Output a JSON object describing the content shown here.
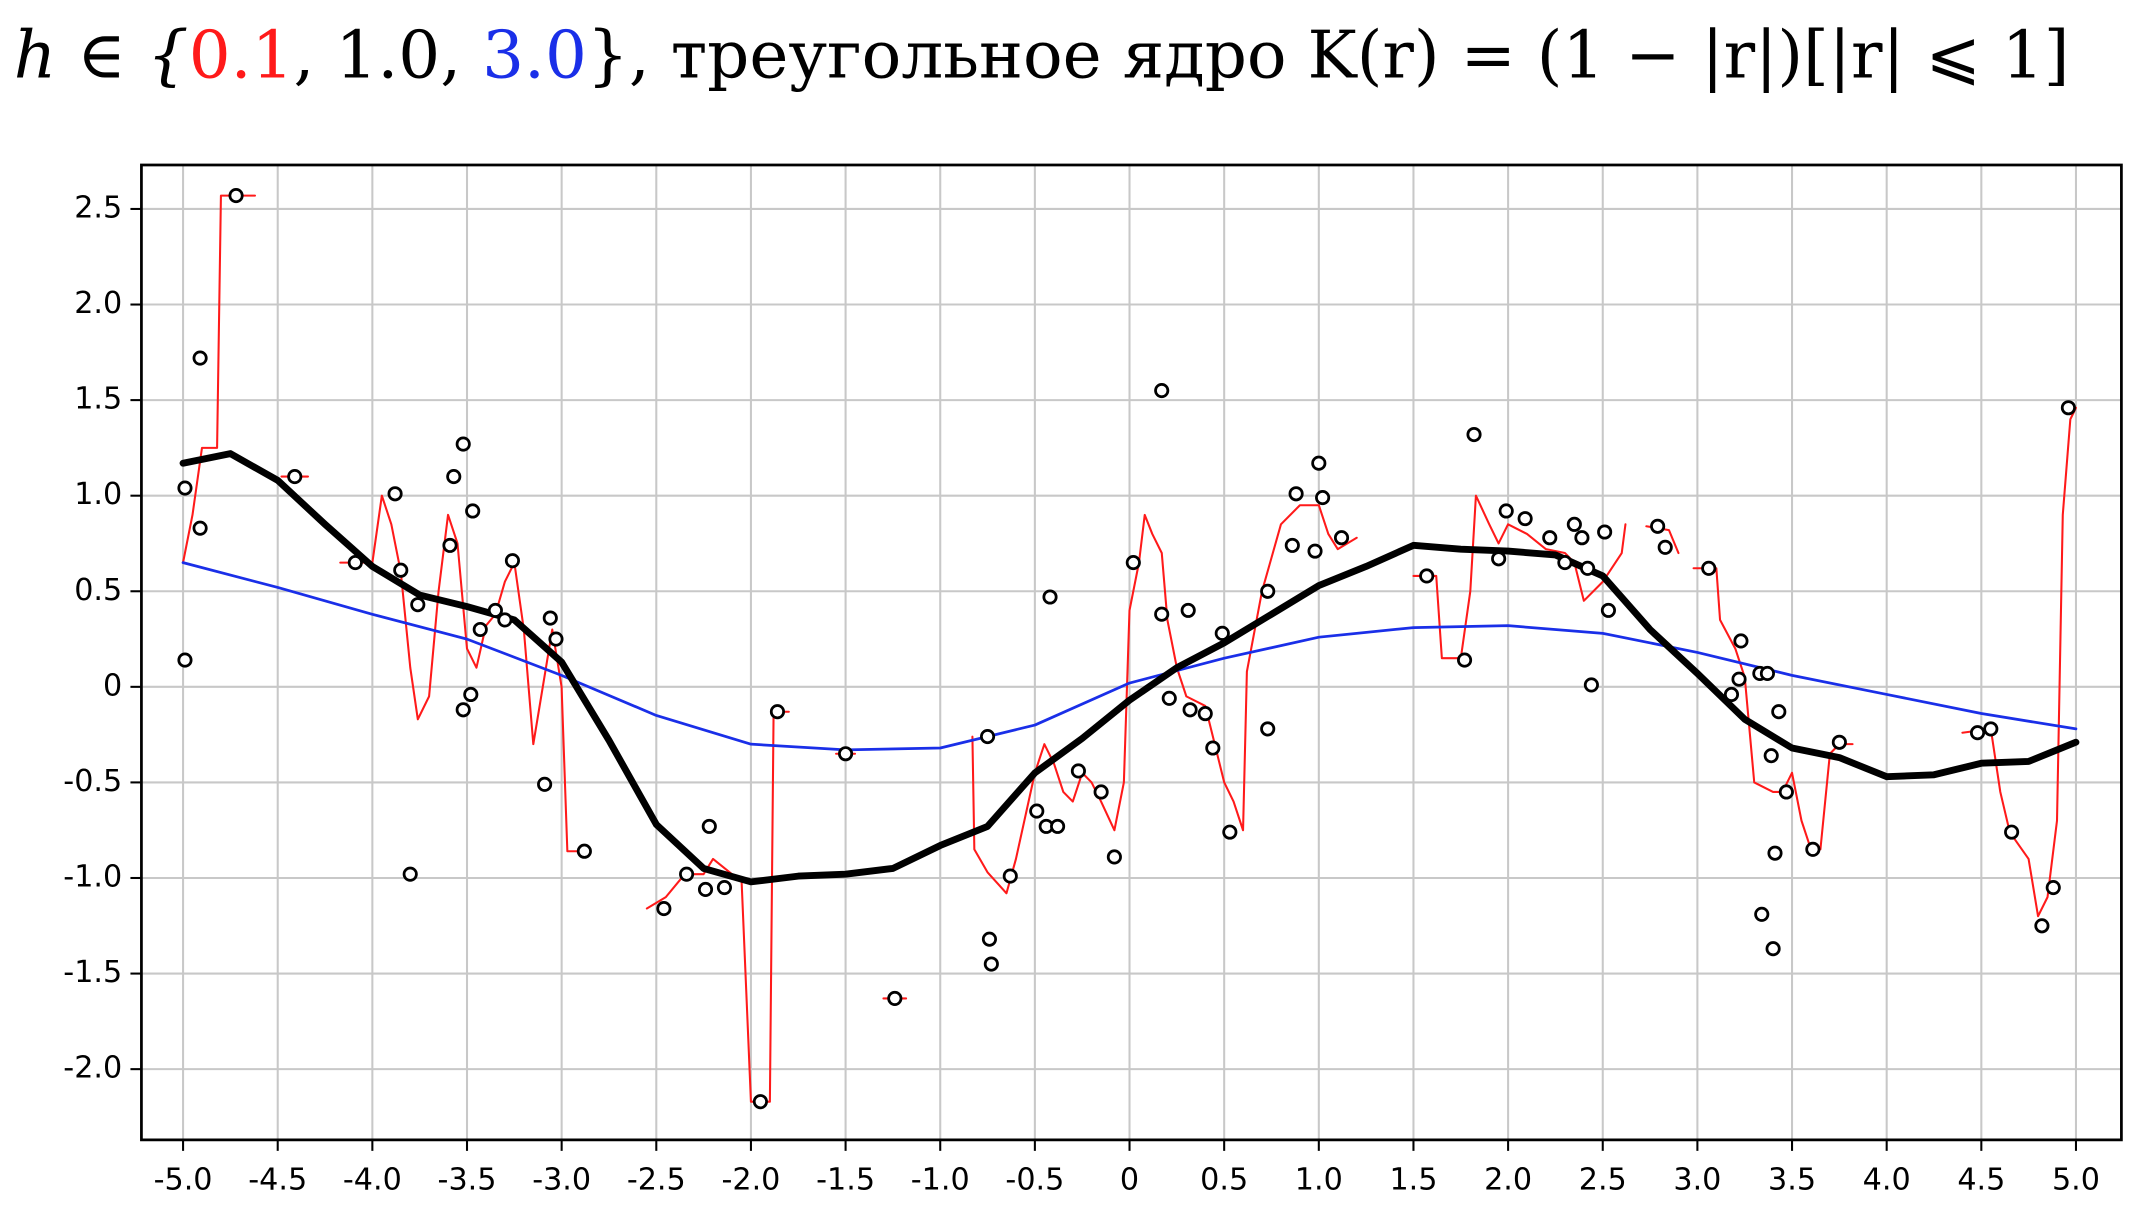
{
  "chart_data": {
    "type": "line",
    "title_prefix": "h ∈ {",
    "title_separator": ", ",
    "title_suffix": "},   треугольное ядро K(r) = (1 − |r|)[|r| ⩽ 1]",
    "xlim": [
      -5.22,
      5.24
    ],
    "ylim": [
      -2.37,
      2.73
    ],
    "grid": true,
    "xticks": [
      {
        "value": -5,
        "label": "-5.0"
      },
      -4.5,
      {
        "value": -4,
        "label": "-4.0"
      },
      -3.5,
      {
        "value": -3,
        "label": "-3.0"
      },
      -2.5,
      {
        "value": -2,
        "label": "-2.0"
      },
      -1.5,
      {
        "value": -1,
        "label": "-1.0"
      },
      -0.5,
      0,
      0.5,
      {
        "value": 1,
        "label": "1.0"
      },
      1.5,
      {
        "value": 2,
        "label": "2.0"
      },
      2.5,
      {
        "value": 3,
        "label": "3.0"
      },
      3.5,
      {
        "value": 4,
        "label": "4.0"
      },
      4.5,
      {
        "value": 5,
        "label": "5.0"
      }
    ],
    "yticks": [
      {
        "value": -2,
        "label": "-2.0"
      },
      -1.5,
      {
        "value": -1,
        "label": "-1.0"
      },
      -0.5,
      0,
      0.5,
      {
        "value": 1,
        "label": "1.0"
      },
      1.5,
      {
        "value": 2,
        "label": "2.0"
      },
      2.5
    ],
    "series": [
      {
        "name": "0.1",
        "type": "line",
        "color": "#ff1a1a",
        "width": 1.5,
        "x": [
          -5,
          -4.95,
          -4.9,
          -4.82,
          -4.8,
          -4.62,
          -4.55,
          -4.48,
          -4.34,
          -4.25,
          -4.17,
          -4.0,
          -3.95,
          -3.9,
          -3.85,
          -3.8,
          -3.76,
          -3.7,
          -3.65,
          -3.6,
          -3.55,
          -3.5,
          -3.45,
          -3.4,
          -3.35,
          -3.3,
          -3.25,
          -3.2,
          -3.15,
          -3.1,
          -3.05,
          -3.0,
          -2.97,
          -2.85,
          -2.7,
          -2.55,
          -2.45,
          -2.35,
          -2.25,
          -2.2,
          -2.1,
          -2.05,
          -2.0,
          -1.9,
          -1.88,
          -1.8,
          -1.68,
          -1.55,
          -1.45,
          -1.38,
          -1.3,
          -1.18,
          -1.0,
          -0.83,
          -0.82,
          -0.75,
          -0.65,
          -0.6,
          -0.5,
          -0.45,
          -0.4,
          -0.35,
          -0.3,
          -0.25,
          -0.2,
          -0.15,
          -0.08,
          -0.03,
          0.0,
          0.05,
          0.08,
          0.12,
          0.17,
          0.2,
          0.25,
          0.3,
          0.4,
          0.45,
          0.5,
          0.55,
          0.6,
          0.62,
          0.7,
          0.8,
          0.9,
          1.0,
          1.05,
          1.1,
          1.2,
          1.35,
          1.5,
          1.62,
          1.65,
          1.75,
          1.8,
          1.83,
          1.9,
          1.95,
          2.0,
          2.1,
          2.2,
          2.3,
          2.35,
          2.4,
          2.5,
          2.6,
          2.62,
          2.68,
          2.73,
          2.85,
          2.9,
          2.94,
          2.98,
          3.1,
          3.12,
          3.2,
          3.25,
          3.3,
          3.4,
          3.45,
          3.5,
          3.55,
          3.6,
          3.65,
          3.7,
          3.75,
          3.82,
          4.1,
          4.4,
          4.55,
          4.6,
          4.65,
          4.75,
          4.8,
          4.85,
          4.9,
          4.93,
          4.97,
          5.0
        ],
        "values": [
          0.65,
          0.9,
          1.25,
          1.25,
          2.57,
          2.57,
          null,
          1.1,
          1.1,
          null,
          0.65,
          0.65,
          1.0,
          0.85,
          0.6,
          0.1,
          -0.17,
          -0.05,
          0.5,
          0.9,
          0.75,
          0.2,
          0.1,
          0.32,
          0.38,
          0.55,
          0.65,
          0.3,
          -0.3,
          0.0,
          0.3,
          0.0,
          -0.86,
          -0.86,
          null,
          -1.16,
          -1.1,
          -0.98,
          -0.98,
          -0.9,
          -0.98,
          -1.0,
          -2.17,
          -2.17,
          -0.13,
          -0.13,
          null,
          -0.35,
          -0.35,
          null,
          -1.63,
          -1.63,
          null,
          -0.26,
          -0.85,
          -0.97,
          -1.08,
          -0.9,
          -0.45,
          -0.3,
          -0.4,
          -0.55,
          -0.6,
          -0.45,
          -0.5,
          -0.6,
          -0.75,
          -0.5,
          0.4,
          0.65,
          0.9,
          0.8,
          0.7,
          0.35,
          0.1,
          -0.05,
          -0.1,
          -0.3,
          -0.5,
          -0.6,
          -0.75,
          0.08,
          0.5,
          0.85,
          0.95,
          0.95,
          0.8,
          0.72,
          0.78,
          null,
          0.58,
          0.58,
          0.15,
          0.15,
          0.5,
          1.0,
          0.85,
          0.75,
          0.85,
          0.8,
          0.72,
          0.7,
          0.65,
          0.45,
          0.55,
          0.7,
          0.85,
          null,
          0.84,
          0.82,
          0.7,
          null,
          0.62,
          0.62,
          0.35,
          0.2,
          0.05,
          -0.5,
          -0.55,
          -0.55,
          -0.45,
          -0.7,
          -0.85,
          -0.85,
          -0.35,
          -0.3,
          -0.3,
          null,
          -0.24,
          -0.22,
          -0.55,
          -0.76,
          -0.9,
          -1.2,
          -1.1,
          -0.7,
          0.9,
          1.4,
          1.46
        ]
      },
      {
        "name": "1.0",
        "type": "line",
        "color": "#000000",
        "width": 5,
        "x": [
          -5,
          -4.75,
          -4.5,
          -4.25,
          -4,
          -3.75,
          -3.5,
          -3.25,
          -3,
          -2.75,
          -2.5,
          -2.25,
          -2,
          -1.75,
          -1.5,
          -1.25,
          -1,
          -0.75,
          -0.5,
          -0.25,
          0,
          0.25,
          0.5,
          0.75,
          1,
          1.25,
          1.5,
          1.75,
          2,
          2.25,
          2.5,
          2.75,
          3,
          3.25,
          3.5,
          3.75,
          4,
          4.25,
          4.5,
          4.75,
          5
        ],
        "values": [
          1.17,
          1.22,
          1.08,
          0.85,
          0.63,
          0.48,
          0.42,
          0.35,
          0.13,
          -0.28,
          -0.72,
          -0.95,
          -1.02,
          -0.99,
          -0.98,
          -0.95,
          -0.83,
          -0.73,
          -0.45,
          -0.27,
          -0.07,
          0.1,
          0.23,
          0.38,
          0.53,
          0.63,
          0.74,
          0.72,
          0.71,
          0.69,
          0.58,
          0.3,
          0.07,
          -0.17,
          -0.32,
          -0.37,
          -0.47,
          -0.46,
          -0.4,
          -0.39,
          -0.29
        ]
      },
      {
        "name": "3.0",
        "type": "line",
        "color": "#1a2fe8",
        "width": 2,
        "x": [
          -5,
          -4.5,
          -4,
          -3.5,
          -3,
          -2.5,
          -2,
          -1.5,
          -1,
          -0.5,
          0,
          0.5,
          1,
          1.5,
          2,
          2.5,
          3,
          3.5,
          4,
          4.5,
          5
        ],
        "values": [
          0.65,
          0.52,
          0.38,
          0.25,
          0.06,
          -0.15,
          -0.3,
          -0.33,
          -0.32,
          -0.2,
          0.02,
          0.15,
          0.26,
          0.31,
          0.32,
          0.28,
          0.18,
          0.06,
          -0.04,
          -0.14,
          -0.22
        ]
      },
      {
        "type": "scatter",
        "color": "#000000",
        "x": [
          -4.99,
          -4.99,
          -4.91,
          -4.91,
          -4.72,
          -4.41,
          -4.09,
          -3.88,
          -3.85,
          -3.8,
          -3.76,
          -3.59,
          -3.57,
          -3.52,
          -3.52,
          -3.48,
          -3.47,
          -3.43,
          -3.35,
          -3.3,
          -3.26,
          -3.09,
          -3.06,
          -3.03,
          -2.88,
          -2.46,
          -2.34,
          -2.24,
          -2.22,
          -2.14,
          -1.95,
          -1.86,
          -1.5,
          -1.24,
          -0.75,
          -0.74,
          -0.73,
          -0.63,
          -0.49,
          -0.44,
          -0.42,
          -0.38,
          -0.27,
          -0.15,
          -0.08,
          0.02,
          0.17,
          0.17,
          0.21,
          0.31,
          0.32,
          0.4,
          0.44,
          0.49,
          0.53,
          0.73,
          0.73,
          0.86,
          0.88,
          0.98,
          1.0,
          1.02,
          1.12,
          1.57,
          1.77,
          1.82,
          1.95,
          1.99,
          2.09,
          2.22,
          2.3,
          2.35,
          2.39,
          2.42,
          2.44,
          2.51,
          2.53,
          2.79,
          2.83,
          3.06,
          3.18,
          3.22,
          3.23,
          3.33,
          3.34,
          3.37,
          3.39,
          3.4,
          3.41,
          3.43,
          3.47,
          3.61,
          3.75,
          4.48,
          4.55,
          4.66,
          4.82,
          4.88,
          4.96
        ],
        "values": [
          1.04,
          0.14,
          0.83,
          1.72,
          2.57,
          1.1,
          0.65,
          1.01,
          0.61,
          -0.98,
          0.43,
          0.74,
          1.1,
          1.27,
          -0.12,
          -0.04,
          0.92,
          0.3,
          0.4,
          0.35,
          0.66,
          -0.51,
          0.36,
          0.25,
          -0.86,
          -1.16,
          -0.98,
          -1.06,
          -0.73,
          -1.05,
          -2.17,
          -0.13,
          -0.35,
          -1.63,
          -0.26,
          -1.32,
          -1.45,
          -0.99,
          -0.65,
          -0.73,
          0.47,
          -0.73,
          -0.44,
          -0.55,
          -0.89,
          0.65,
          1.55,
          0.38,
          -0.06,
          0.4,
          -0.12,
          -0.14,
          -0.32,
          0.28,
          -0.76,
          0.5,
          -0.22,
          0.74,
          1.01,
          0.71,
          1.17,
          0.99,
          0.78,
          0.58,
          0.14,
          1.32,
          0.67,
          0.92,
          0.88,
          0.78,
          0.65,
          0.85,
          0.78,
          0.62,
          0.01,
          0.81,
          0.4,
          0.84,
          0.73,
          0.62,
          -0.04,
          0.04,
          0.24,
          0.07,
          -1.19,
          0.07,
          -0.36,
          -1.37,
          -0.87,
          -0.13,
          -0.55,
          -0.85,
          -0.29,
          -0.24,
          -0.22,
          -0.76,
          -1.25,
          -1.05,
          1.46
        ]
      }
    ]
  }
}
